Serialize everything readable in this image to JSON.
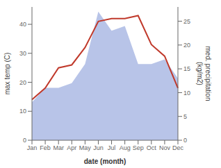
{
  "chart_data": {
    "type": "line",
    "categories": [
      "Jan",
      "Feb",
      "Mar",
      "Apr",
      "May",
      "Jun",
      "Jul",
      "Aug",
      "Sep",
      "Oct",
      "Nov",
      "Dec"
    ],
    "series": [
      {
        "type": "area",
        "axis": "y2",
        "color": "#b8c4e8",
        "values": [
          8,
          11,
          11,
          12,
          16,
          27,
          23,
          24,
          16,
          16,
          17,
          13
        ]
      },
      {
        "type": "line",
        "axis": "y",
        "color": "#c0392b",
        "values": [
          14,
          18,
          25,
          26,
          32,
          41,
          42,
          42,
          43,
          33,
          29,
          18
        ]
      }
    ],
    "xlabel": "date (month)",
    "ylabel": "max temp (C)",
    "y2label": "med. precipitation\n(kg/m2)",
    "ylim": [
      0,
      46
    ],
    "yticks": [
      0,
      10,
      20,
      30,
      40
    ],
    "y2lim": [
      0,
      28
    ],
    "y2ticks": [
      0,
      5,
      10,
      15,
      20,
      25
    ],
    "grid": false
  }
}
